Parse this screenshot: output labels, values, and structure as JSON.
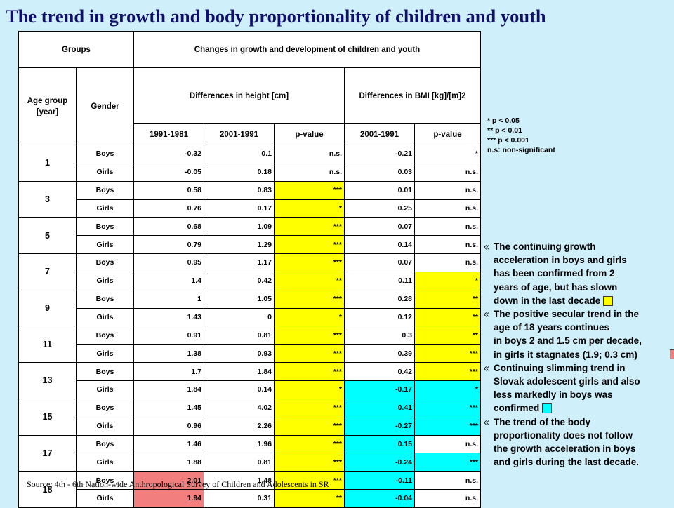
{
  "title": "The trend in growth and body proportionality of children and youth",
  "table": {
    "header": {
      "groups": "Groups",
      "changes": "Changes in growth and development of children and youth",
      "age_group": "Age group [year]",
      "gender": "Gender",
      "height_diff": "Differences in height [cm]",
      "bmi_diff": "Differences in BMI [kg]/[m]2",
      "col_1991_1981": "1991-1981",
      "col_2001_1991": "2001-1991",
      "col_pvalue": "p-value",
      "col_bmi_2001_1991": "2001-1991",
      "col_bmi_pvalue": "p-value"
    },
    "rows": [
      {
        "age": "1",
        "gender": "Boys",
        "h1": "-0.32",
        "h2": "0.1",
        "hp": "n.s.",
        "b": "-0.21",
        "bp": "*"
      },
      {
        "age": "1",
        "gender": "Girls",
        "h1": "-0.05",
        "h2": "0.18",
        "hp": "n.s.",
        "b": "0.03",
        "bp": "n.s."
      },
      {
        "age": "3",
        "gender": "Boys",
        "h1": "0.58",
        "h2": "0.83",
        "hp": "***",
        "b": "0.01",
        "bp": "n.s."
      },
      {
        "age": "3",
        "gender": "Girls",
        "h1": "0.76",
        "h2": "0.17",
        "hp": "*",
        "b": "0.25",
        "bp": "n.s."
      },
      {
        "age": "5",
        "gender": "Boys",
        "h1": "0.68",
        "h2": "1.09",
        "hp": "***",
        "b": "0.07",
        "bp": "n.s."
      },
      {
        "age": "5",
        "gender": "Girls",
        "h1": "0.79",
        "h2": "1.29",
        "hp": "***",
        "b": "0.14",
        "bp": "n.s."
      },
      {
        "age": "7",
        "gender": "Boys",
        "h1": "0.95",
        "h2": "1.17",
        "hp": "***",
        "b": "0.07",
        "bp": "n.s."
      },
      {
        "age": "7",
        "gender": "Girls",
        "h1": "1.4",
        "h2": "0.42",
        "hp": "**",
        "b": "0.11",
        "bp": "*"
      },
      {
        "age": "9",
        "gender": "Boys",
        "h1": "1",
        "h2": "1.05",
        "hp": "***",
        "b": "0.28",
        "bp": "**"
      },
      {
        "age": "9",
        "gender": "Girls",
        "h1": "1.43",
        "h2": "0",
        "hp": "*",
        "b": "0.12",
        "bp": "**"
      },
      {
        "age": "11",
        "gender": "Boys",
        "h1": "0.91",
        "h2": "0.81",
        "hp": "***",
        "b": "0.3",
        "bp": "**"
      },
      {
        "age": "11",
        "gender": "Girls",
        "h1": "1.38",
        "h2": "0.93",
        "hp": "***",
        "b": "0.39",
        "bp": "***"
      },
      {
        "age": "13",
        "gender": "Boys",
        "h1": "1.7",
        "h2": "1.84",
        "hp": "***",
        "b": "0.42",
        "bp": "***"
      },
      {
        "age": "13",
        "gender": "Girls",
        "h1": "1.84",
        "h2": "0.14",
        "hp": "*",
        "b": "-0.17",
        "bp": "*"
      },
      {
        "age": "15",
        "gender": "Boys",
        "h1": "1.45",
        "h2": "4.02",
        "hp": "***",
        "b": "0.41",
        "bp": "***"
      },
      {
        "age": "15",
        "gender": "Girls",
        "h1": "0.96",
        "h2": "2.26",
        "hp": "***",
        "b": "-0.27",
        "bp": "***"
      },
      {
        "age": "17",
        "gender": "Boys",
        "h1": "1.46",
        "h2": "1.96",
        "hp": "***",
        "b": "0.15",
        "bp": "n.s."
      },
      {
        "age": "17",
        "gender": "Girls",
        "h1": "1.88",
        "h2": "0.81",
        "hp": "***",
        "b": "-0.24",
        "bp": "***"
      },
      {
        "age": "18",
        "gender": "Boys",
        "h1": "2.01",
        "h2": "1.48",
        "hp": "***",
        "b": "-0.11",
        "bp": "n.s."
      },
      {
        "age": "18",
        "gender": "Girls",
        "h1": "1.94",
        "h2": "0.31",
        "hp": "**",
        "b": "-0.04",
        "bp": "n.s."
      }
    ]
  },
  "legend": [
    "*   p < 0.05",
    "**  p < 0.01",
    "***  p < 0.001",
    "n.s: non-significant"
  ],
  "notes": {
    "bullet": "«",
    "n1": [
      "The continuing growth",
      "acceleration in boys and girls",
      "has been confirmed from 2",
      "years of age, but has slown",
      "down in the last decade"
    ],
    "n2": [
      "The positive secular trend in the",
      "age of 18 years continues",
      "in boys 2 and 1.5 cm per decade,",
      "in girls it stagnates (1.9; 0.3 cm)"
    ],
    "n3": [
      "Continuing slimming trend in",
      "Slovak adolescent girls and also",
      "less markedly in boys was",
      "confirmed"
    ],
    "n4": [
      "The trend of the body",
      "proportionality does not follow",
      "the growth acceleration in boys",
      "and girls during the last decade."
    ]
  },
  "colors": {
    "background": "#cfeffb",
    "title": "#10106a",
    "highlight_yellow": "#ffff00",
    "highlight_cyan": "#00ffff",
    "highlight_red": "#f37e7e"
  },
  "source": "Source: 4th - 6th  Nation-wide Anthropological Survey of Children and Adolescents in SR"
}
